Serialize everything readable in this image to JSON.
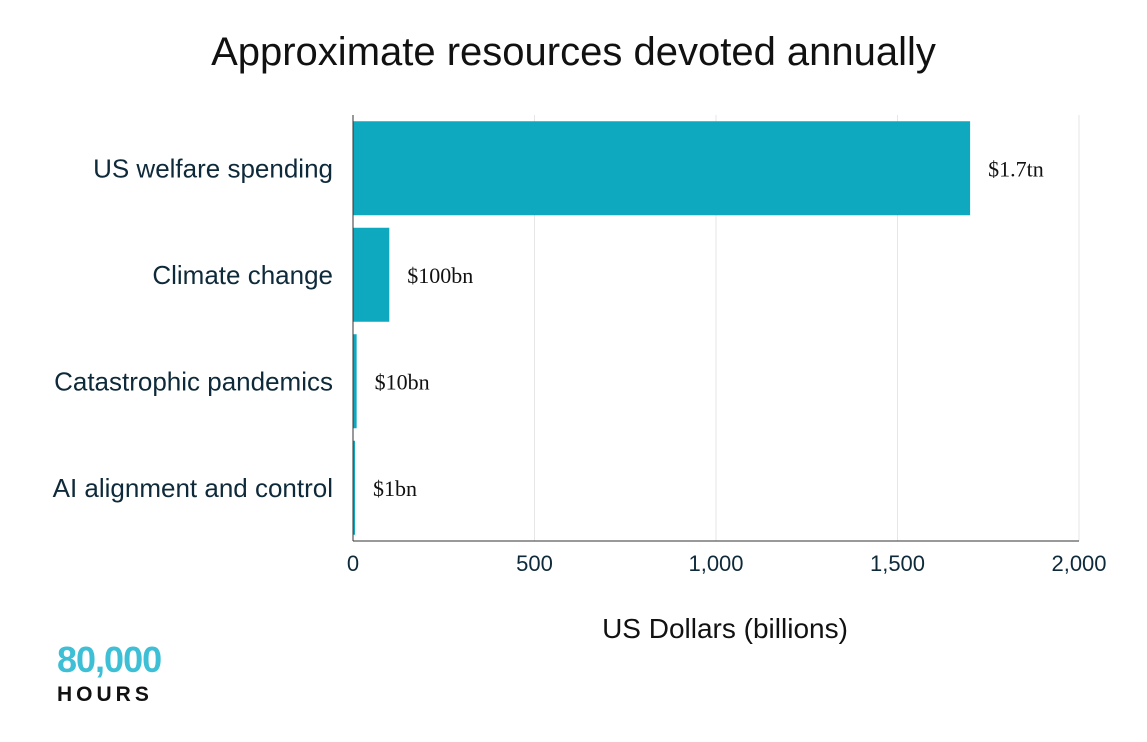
{
  "chart_data": {
    "type": "bar",
    "orientation": "horizontal",
    "title": "Approximate resources devoted annually",
    "xlabel": "US Dollars (billions)",
    "ylabel": "",
    "categories": [
      "US welfare spending",
      "Climate change",
      "Catastrophic pandemics",
      "AI alignment and control"
    ],
    "values": [
      1700,
      100,
      10,
      1
    ],
    "data_labels": [
      "$1.7tn",
      "$100bn",
      "$10bn",
      "$1bn"
    ],
    "xlim": [
      0,
      2000
    ],
    "x_ticks": [
      0,
      500,
      1000,
      1500,
      2000
    ],
    "x_tick_labels": [
      "0",
      "500",
      "1,000",
      "1,500",
      "2,000"
    ],
    "grid": "vertical",
    "bar_color": "#0ea9bf"
  },
  "logo": {
    "number": "80,000",
    "word": "HOURS",
    "number_color": "#3dbfd6"
  }
}
